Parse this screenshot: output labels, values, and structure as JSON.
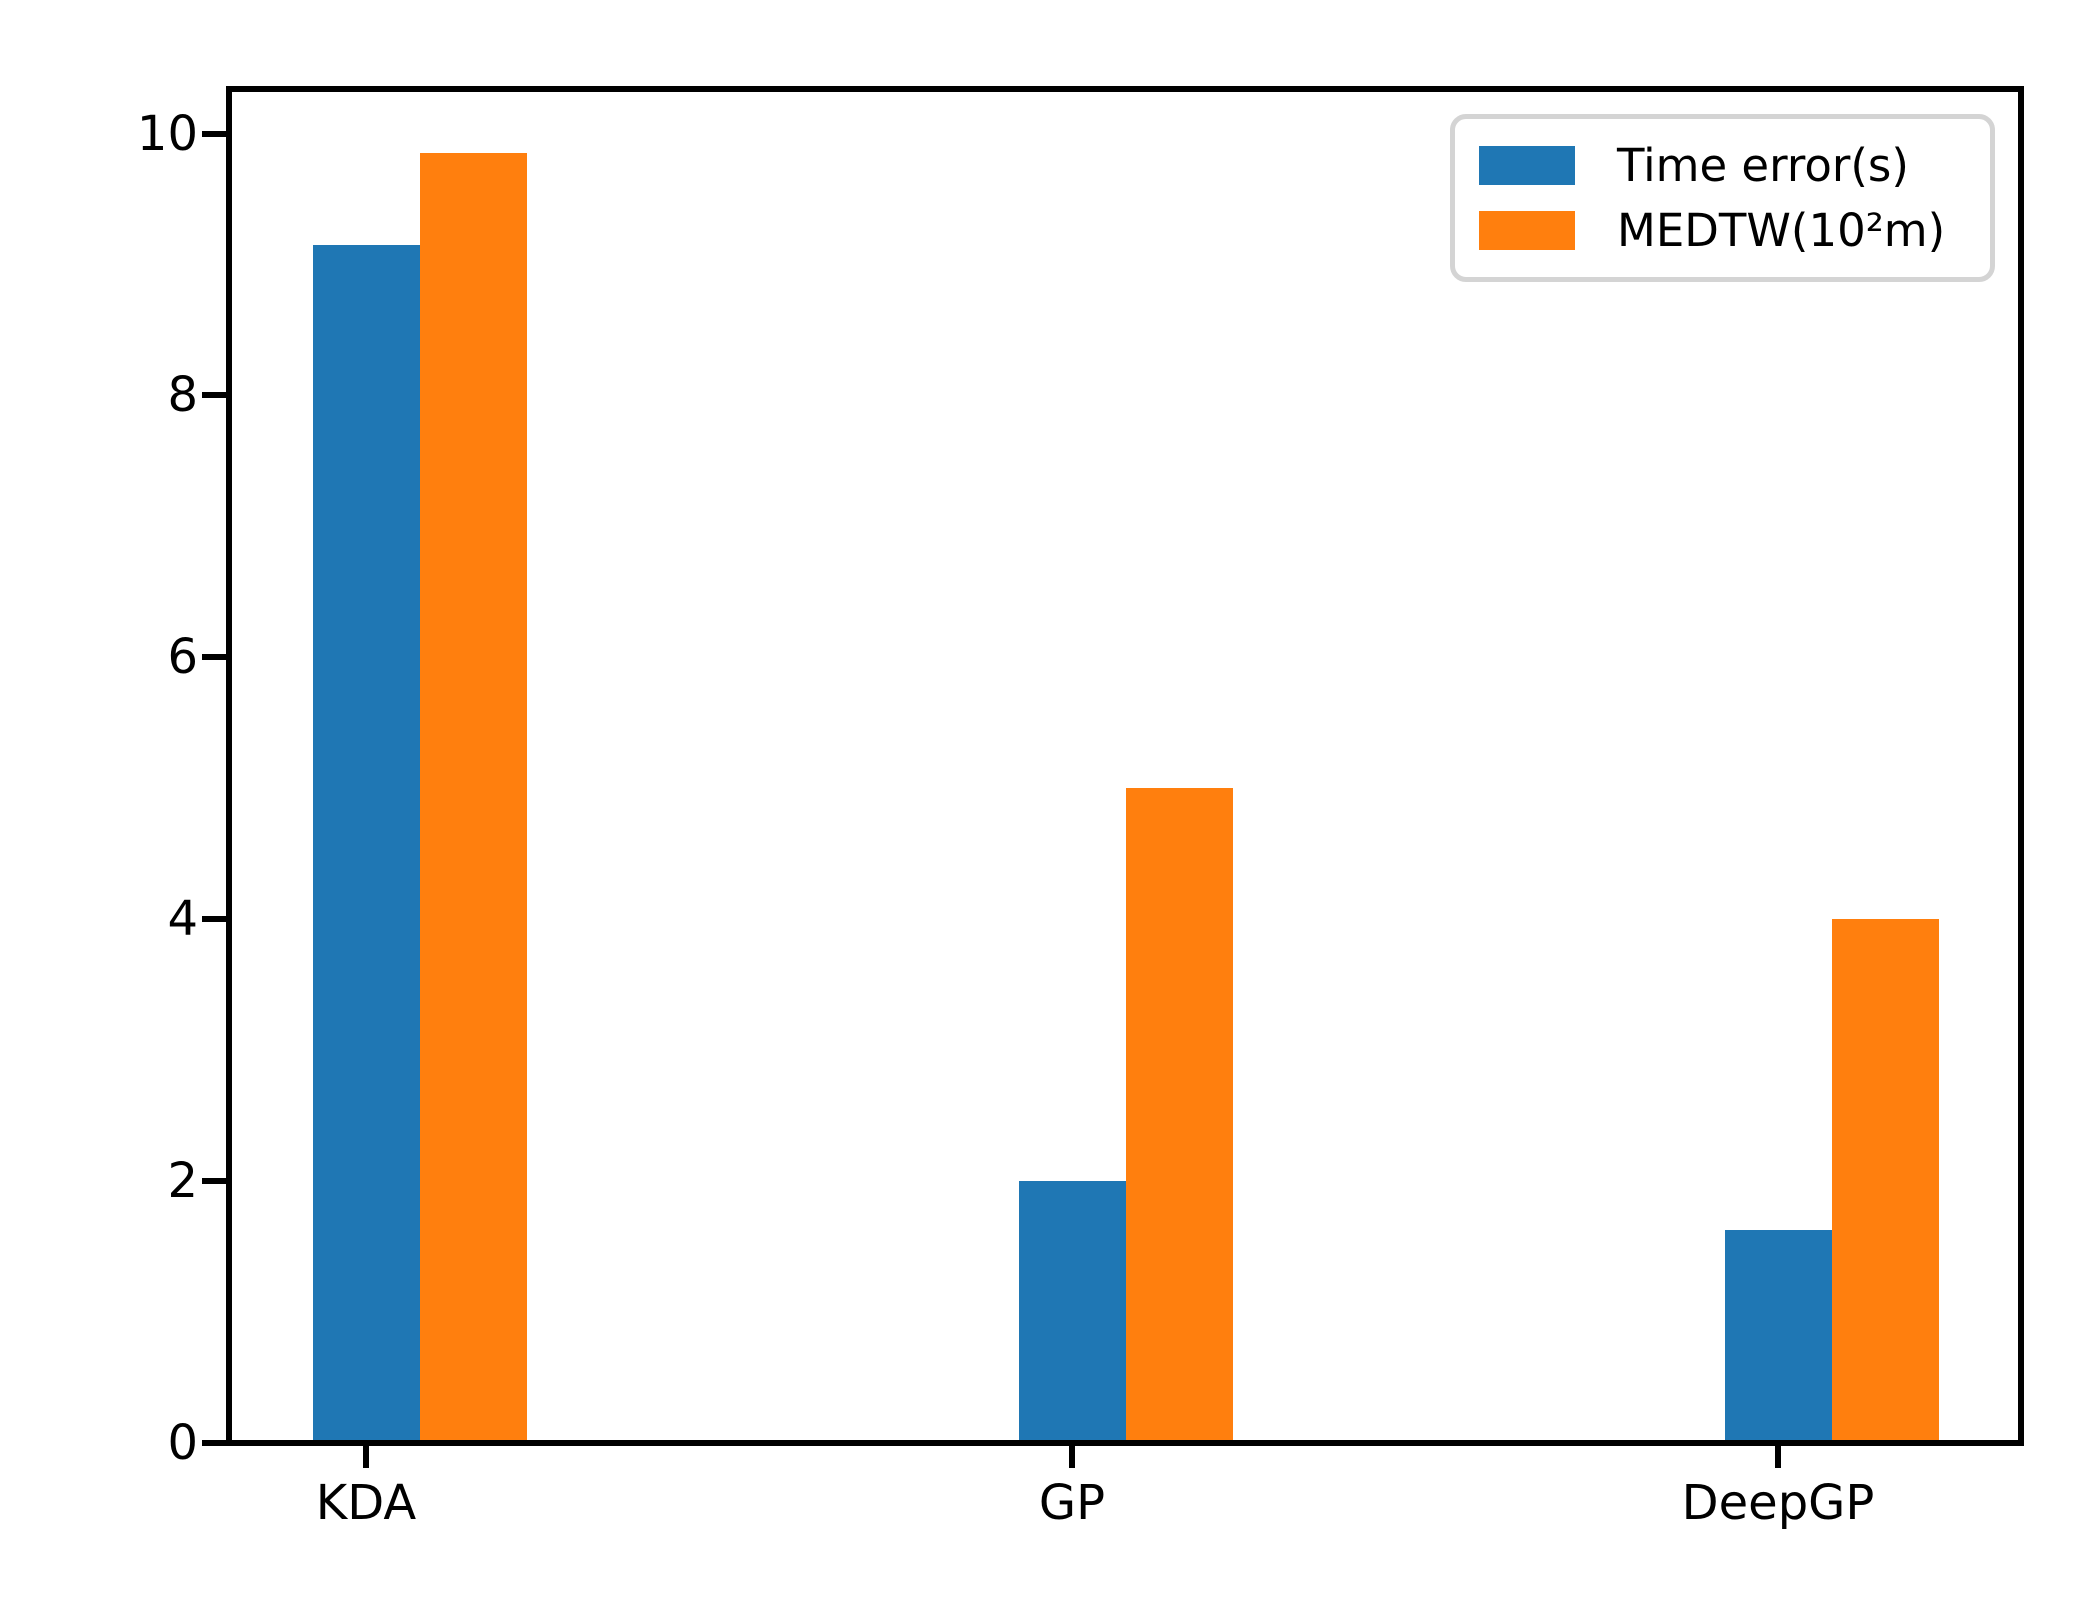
{
  "chart_data": {
    "type": "bar",
    "categories": [
      "KDA",
      "GP",
      "DeepGP"
    ],
    "series": [
      {
        "name": "Time error(s)",
        "color": "#1f77b4",
        "values": [
          9.15,
          2.0,
          1.63
        ]
      },
      {
        "name": "MEDTW(10²m)",
        "color": "#ff7f0e",
        "values": [
          9.85,
          5.0,
          4.0
        ]
      }
    ],
    "title": "",
    "xlabel": "",
    "ylabel": "",
    "ylim": [
      0,
      10.34
    ],
    "yticks": [
      0,
      2,
      4,
      6,
      8,
      10
    ],
    "grid": false,
    "legend_position": "upper right",
    "axis_color": "#000000",
    "background_color": "#ffffff"
  }
}
